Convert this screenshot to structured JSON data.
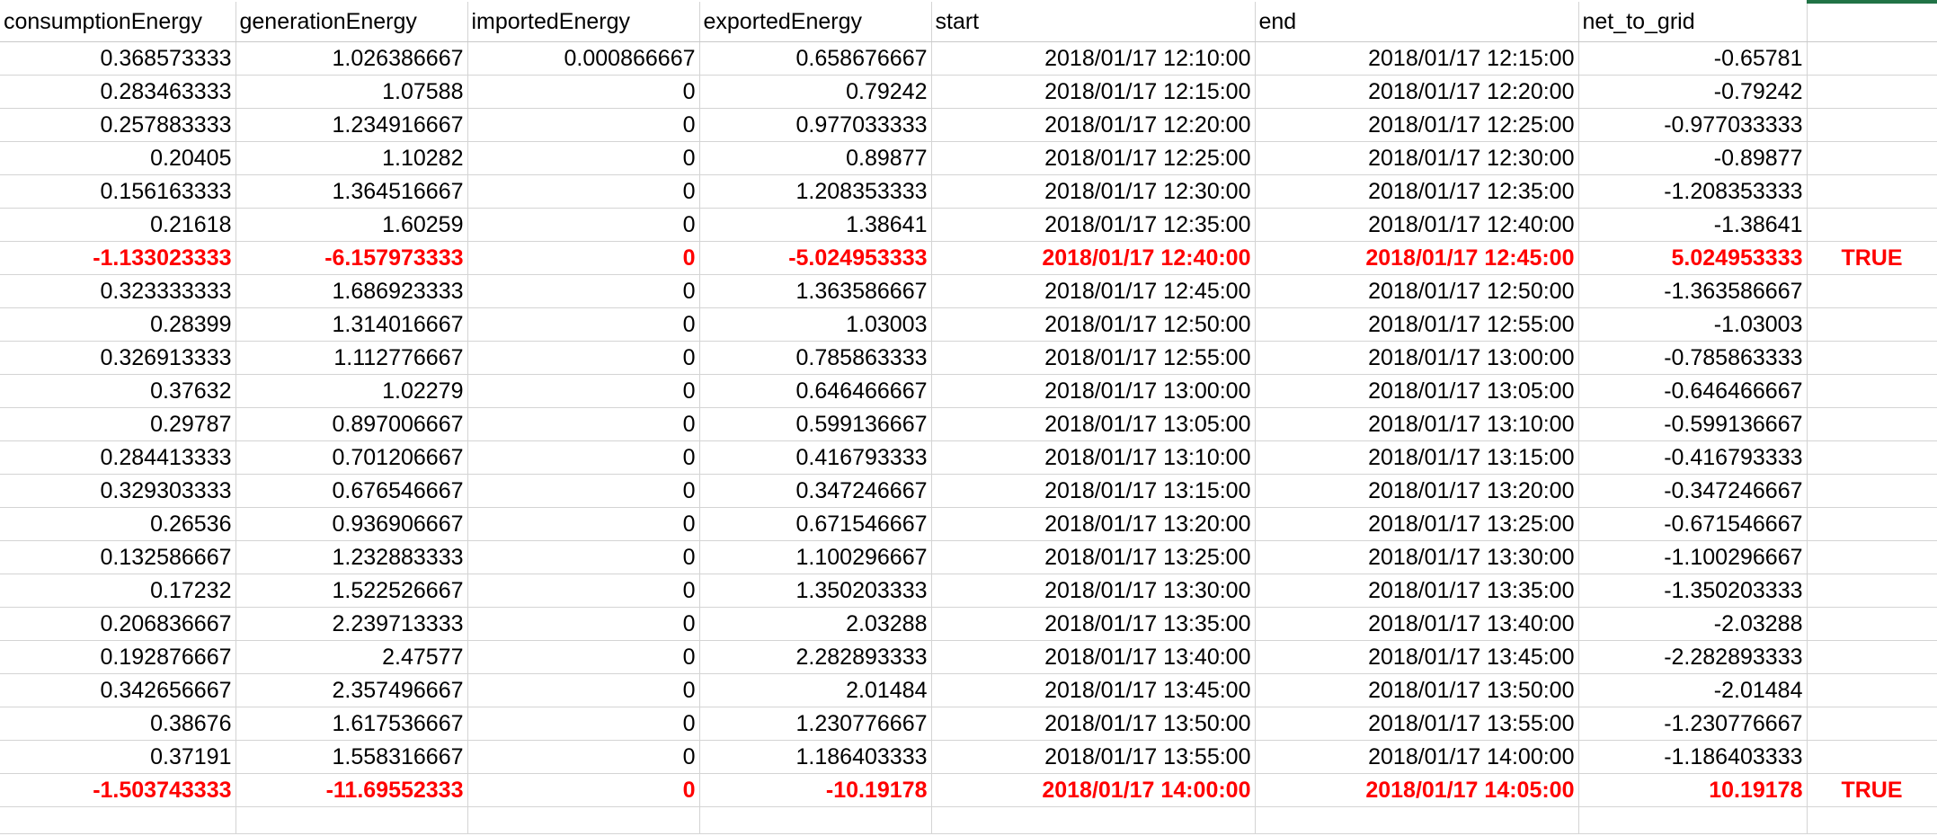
{
  "headers": [
    "consumptionEnergy",
    "generationEnergy",
    "importedEnergy",
    "exportedEnergy",
    "start",
    "end",
    "net_to_grid",
    ""
  ],
  "rows": [
    {
      "cells": [
        "0.368573333",
        "1.026386667",
        "0.000866667",
        "0.658676667",
        "2018/01/17 12:10:00",
        "2018/01/17 12:15:00",
        "-0.65781",
        ""
      ],
      "highlight": false
    },
    {
      "cells": [
        "0.283463333",
        "1.07588",
        "0",
        "0.79242",
        "2018/01/17 12:15:00",
        "2018/01/17 12:20:00",
        "-0.79242",
        ""
      ],
      "highlight": false
    },
    {
      "cells": [
        "0.257883333",
        "1.234916667",
        "0",
        "0.977033333",
        "2018/01/17 12:20:00",
        "2018/01/17 12:25:00",
        "-0.977033333",
        ""
      ],
      "highlight": false
    },
    {
      "cells": [
        "0.20405",
        "1.10282",
        "0",
        "0.89877",
        "2018/01/17 12:25:00",
        "2018/01/17 12:30:00",
        "-0.89877",
        ""
      ],
      "highlight": false
    },
    {
      "cells": [
        "0.156163333",
        "1.364516667",
        "0",
        "1.208353333",
        "2018/01/17 12:30:00",
        "2018/01/17 12:35:00",
        "-1.208353333",
        ""
      ],
      "highlight": false
    },
    {
      "cells": [
        "0.21618",
        "1.60259",
        "0",
        "1.38641",
        "2018/01/17 12:35:00",
        "2018/01/17 12:40:00",
        "-1.38641",
        ""
      ],
      "highlight": false
    },
    {
      "cells": [
        "-1.133023333",
        "-6.157973333",
        "0",
        "-5.024953333",
        "2018/01/17 12:40:00",
        "2018/01/17 12:45:00",
        "5.024953333",
        "TRUE"
      ],
      "highlight": true
    },
    {
      "cells": [
        "0.323333333",
        "1.686923333",
        "0",
        "1.363586667",
        "2018/01/17 12:45:00",
        "2018/01/17 12:50:00",
        "-1.363586667",
        ""
      ],
      "highlight": false
    },
    {
      "cells": [
        "0.28399",
        "1.314016667",
        "0",
        "1.03003",
        "2018/01/17 12:50:00",
        "2018/01/17 12:55:00",
        "-1.03003",
        ""
      ],
      "highlight": false
    },
    {
      "cells": [
        "0.326913333",
        "1.112776667",
        "0",
        "0.785863333",
        "2018/01/17 12:55:00",
        "2018/01/17 13:00:00",
        "-0.785863333",
        ""
      ],
      "highlight": false
    },
    {
      "cells": [
        "0.37632",
        "1.02279",
        "0",
        "0.646466667",
        "2018/01/17 13:00:00",
        "2018/01/17 13:05:00",
        "-0.646466667",
        ""
      ],
      "highlight": false
    },
    {
      "cells": [
        "0.29787",
        "0.897006667",
        "0",
        "0.599136667",
        "2018/01/17 13:05:00",
        "2018/01/17 13:10:00",
        "-0.599136667",
        ""
      ],
      "highlight": false
    },
    {
      "cells": [
        "0.284413333",
        "0.701206667",
        "0",
        "0.416793333",
        "2018/01/17 13:10:00",
        "2018/01/17 13:15:00",
        "-0.416793333",
        ""
      ],
      "highlight": false
    },
    {
      "cells": [
        "0.329303333",
        "0.676546667",
        "0",
        "0.347246667",
        "2018/01/17 13:15:00",
        "2018/01/17 13:20:00",
        "-0.347246667",
        ""
      ],
      "highlight": false
    },
    {
      "cells": [
        "0.26536",
        "0.936906667",
        "0",
        "0.671546667",
        "2018/01/17 13:20:00",
        "2018/01/17 13:25:00",
        "-0.671546667",
        ""
      ],
      "highlight": false
    },
    {
      "cells": [
        "0.132586667",
        "1.232883333",
        "0",
        "1.100296667",
        "2018/01/17 13:25:00",
        "2018/01/17 13:30:00",
        "-1.100296667",
        ""
      ],
      "highlight": false
    },
    {
      "cells": [
        "0.17232",
        "1.522526667",
        "0",
        "1.350203333",
        "2018/01/17 13:30:00",
        "2018/01/17 13:35:00",
        "-1.350203333",
        ""
      ],
      "highlight": false
    },
    {
      "cells": [
        "0.206836667",
        "2.239713333",
        "0",
        "2.03288",
        "2018/01/17 13:35:00",
        "2018/01/17 13:40:00",
        "-2.03288",
        ""
      ],
      "highlight": false
    },
    {
      "cells": [
        "0.192876667",
        "2.47577",
        "0",
        "2.282893333",
        "2018/01/17 13:40:00",
        "2018/01/17 13:45:00",
        "-2.282893333",
        ""
      ],
      "highlight": false
    },
    {
      "cells": [
        "0.342656667",
        "2.357496667",
        "0",
        "2.01484",
        "2018/01/17 13:45:00",
        "2018/01/17 13:50:00",
        "-2.01484",
        ""
      ],
      "highlight": false
    },
    {
      "cells": [
        "0.38676",
        "1.617536667",
        "0",
        "1.230776667",
        "2018/01/17 13:50:00",
        "2018/01/17 13:55:00",
        "-1.230776667",
        ""
      ],
      "highlight": false
    },
    {
      "cells": [
        "0.37191",
        "1.558316667",
        "0",
        "1.186403333",
        "2018/01/17 13:55:00",
        "2018/01/17 14:00:00",
        "-1.186403333",
        ""
      ],
      "highlight": false
    },
    {
      "cells": [
        "-1.503743333",
        "-11.69552333",
        "0",
        "-10.19178",
        "2018/01/17 14:00:00",
        "2018/01/17 14:05:00",
        "10.19178",
        "TRUE"
      ],
      "highlight": true
    }
  ],
  "colors": {
    "highlight_text": "#ff0000",
    "gridline": "#d4d4d4",
    "selection_accent": "#217346"
  }
}
